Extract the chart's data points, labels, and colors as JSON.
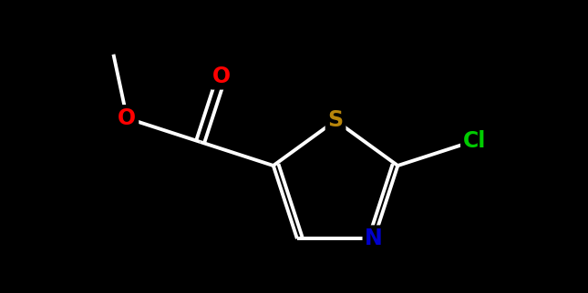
{
  "background_color": "#000000",
  "bond_color": "#ffffff",
  "atom_colors": {
    "O": "#ff0000",
    "S": "#b8860b",
    "N": "#0000cd",
    "Cl": "#00cc00"
  },
  "figsize": [
    6.45,
    3.22
  ],
  "dpi": 100,
  "lw": 2.8,
  "fs": 17
}
